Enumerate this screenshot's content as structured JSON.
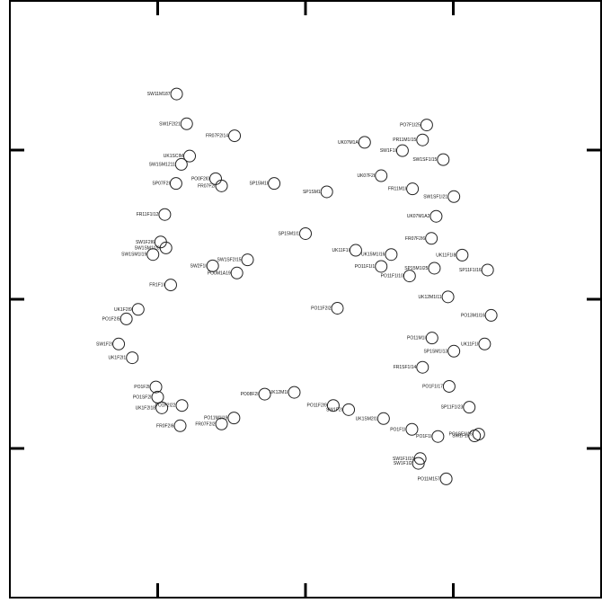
{
  "chart_data": {
    "type": "scatter",
    "title": "",
    "xlabel": "",
    "ylabel": "",
    "xlim": [
      0,
      100
    ],
    "ylim": [
      0,
      100
    ],
    "x_ticks": [
      25,
      50,
      75
    ],
    "y_ticks": [
      25,
      50,
      75
    ],
    "tick_labels_shown": false,
    "grid": false,
    "legend": "none",
    "points": [
      {
        "x": 28.2,
        "y": 84.4,
        "label": "SW11M187"
      },
      {
        "x": 29.9,
        "y": 79.4,
        "label": "SW1F2I21"
      },
      {
        "x": 38.0,
        "y": 77.4,
        "label": "FR07F2I14"
      },
      {
        "x": 30.4,
        "y": 74.0,
        "label": "UK1SCIM"
      },
      {
        "x": 29.0,
        "y": 72.6,
        "label": "SW1SM1211"
      },
      {
        "x": 28.1,
        "y": 69.4,
        "label": "SP07F2I"
      },
      {
        "x": 26.2,
        "y": 64.2,
        "label": "FR11F1I12"
      },
      {
        "x": 25.5,
        "y": 59.6,
        "label": "SW1F2I6"
      },
      {
        "x": 26.4,
        "y": 58.6,
        "label": "SW1SM1I20"
      },
      {
        "x": 24.2,
        "y": 57.5,
        "label": "SW1SM1I19"
      },
      {
        "x": 27.2,
        "y": 52.4,
        "label": "FR1F1I"
      },
      {
        "x": 34.3,
        "y": 55.6,
        "label": "SW2F1I"
      },
      {
        "x": 38.4,
        "y": 54.4,
        "label": "PO0M1A19"
      },
      {
        "x": 34.8,
        "y": 70.2,
        "label": "PO0F2I0"
      },
      {
        "x": 35.8,
        "y": 69.0,
        "label": "FR07F2I"
      },
      {
        "x": 44.7,
        "y": 69.4,
        "label": "SP15M1I"
      },
      {
        "x": 53.6,
        "y": 68.0,
        "label": "SP1SM1"
      },
      {
        "x": 50.0,
        "y": 61.0,
        "label": "SP15M1I1"
      },
      {
        "x": 40.2,
        "y": 56.6,
        "label": "SW1SF2I15"
      },
      {
        "x": 21.7,
        "y": 48.3,
        "label": "UK1F2I9"
      },
      {
        "x": 19.7,
        "y": 46.7,
        "label": "PO1F2I5"
      },
      {
        "x": 18.4,
        "y": 42.5,
        "label": "SW1F2I"
      },
      {
        "x": 20.7,
        "y": 40.2,
        "label": "UK1F2I1"
      },
      {
        "x": 24.7,
        "y": 35.3,
        "label": "PO1F2I"
      },
      {
        "x": 25.0,
        "y": 33.6,
        "label": "PO1SF2I"
      },
      {
        "x": 25.7,
        "y": 31.8,
        "label": "UK1F2I18"
      },
      {
        "x": 29.1,
        "y": 32.2,
        "label": "PO1F2I22"
      },
      {
        "x": 28.8,
        "y": 28.8,
        "label": "FR0F2I6"
      },
      {
        "x": 37.9,
        "y": 30.1,
        "label": "PO11M1I19"
      },
      {
        "x": 35.8,
        "y": 29.1,
        "label": "FR07F2I2"
      },
      {
        "x": 43.1,
        "y": 34.1,
        "label": "PO08F2I"
      },
      {
        "x": 48.1,
        "y": 34.4,
        "label": "UK12M1I"
      },
      {
        "x": 55.4,
        "y": 48.5,
        "label": "PO11F2I2"
      },
      {
        "x": 54.7,
        "y": 32.2,
        "label": "PO11F2I9"
      },
      {
        "x": 57.3,
        "y": 31.5,
        "label": "SW1F2I"
      },
      {
        "x": 63.2,
        "y": 30.0,
        "label": "UK1SM2I1"
      },
      {
        "x": 68.0,
        "y": 28.2,
        "label": "PO1F1I"
      },
      {
        "x": 60.0,
        "y": 76.3,
        "label": "UK07M1A"
      },
      {
        "x": 70.5,
        "y": 79.2,
        "label": "PO7F1I25"
      },
      {
        "x": 69.8,
        "y": 76.7,
        "label": "PR11M1I15"
      },
      {
        "x": 73.3,
        "y": 73.4,
        "label": "SW1SF1I15"
      },
      {
        "x": 66.4,
        "y": 74.9,
        "label": "SW1F1I"
      },
      {
        "x": 62.8,
        "y": 70.7,
        "label": "UK07F2I"
      },
      {
        "x": 68.1,
        "y": 68.5,
        "label": "FR11M1I"
      },
      {
        "x": 75.1,
        "y": 67.2,
        "label": "SW1SF1I21"
      },
      {
        "x": 72.1,
        "y": 63.9,
        "label": "UK07M1A2"
      },
      {
        "x": 71.3,
        "y": 60.2,
        "label": "FR07F2I6"
      },
      {
        "x": 76.5,
        "y": 57.4,
        "label": "UK11F1I8"
      },
      {
        "x": 80.8,
        "y": 54.9,
        "label": "SP11F1I16"
      },
      {
        "x": 64.5,
        "y": 57.5,
        "label": "UK15M1I16"
      },
      {
        "x": 71.8,
        "y": 55.2,
        "label": "SP15M1I25"
      },
      {
        "x": 67.6,
        "y": 53.9,
        "label": "PO11F1I10"
      },
      {
        "x": 62.8,
        "y": 55.5,
        "label": "PO11F1I1"
      },
      {
        "x": 58.5,
        "y": 58.2,
        "label": "UK11F1I"
      },
      {
        "x": 74.1,
        "y": 50.4,
        "label": "UK12M1I11"
      },
      {
        "x": 81.4,
        "y": 47.3,
        "label": "PO13M1I16"
      },
      {
        "x": 71.4,
        "y": 43.5,
        "label": "PO11M1I"
      },
      {
        "x": 75.1,
        "y": 41.3,
        "label": "SP1SM1I13"
      },
      {
        "x": 69.8,
        "y": 38.6,
        "label": "FR1SF1I14"
      },
      {
        "x": 74.3,
        "y": 35.4,
        "label": "PO1F1I17"
      },
      {
        "x": 77.7,
        "y": 31.9,
        "label": "SP11F1I23"
      },
      {
        "x": 79.3,
        "y": 27.4,
        "label": "PO1SF1I16"
      },
      {
        "x": 78.6,
        "y": 27.1,
        "label": "SW1F1I"
      },
      {
        "x": 69.4,
        "y": 23.3,
        "label": "SW1F1I10"
      },
      {
        "x": 69.1,
        "y": 22.5,
        "label": "SW1F1I2"
      },
      {
        "x": 73.8,
        "y": 19.9,
        "label": "PO11M157"
      },
      {
        "x": 72.4,
        "y": 27.0,
        "label": "PO1F1I"
      },
      {
        "x": 80.3,
        "y": 42.5,
        "label": "UK11F1I"
      }
    ]
  }
}
